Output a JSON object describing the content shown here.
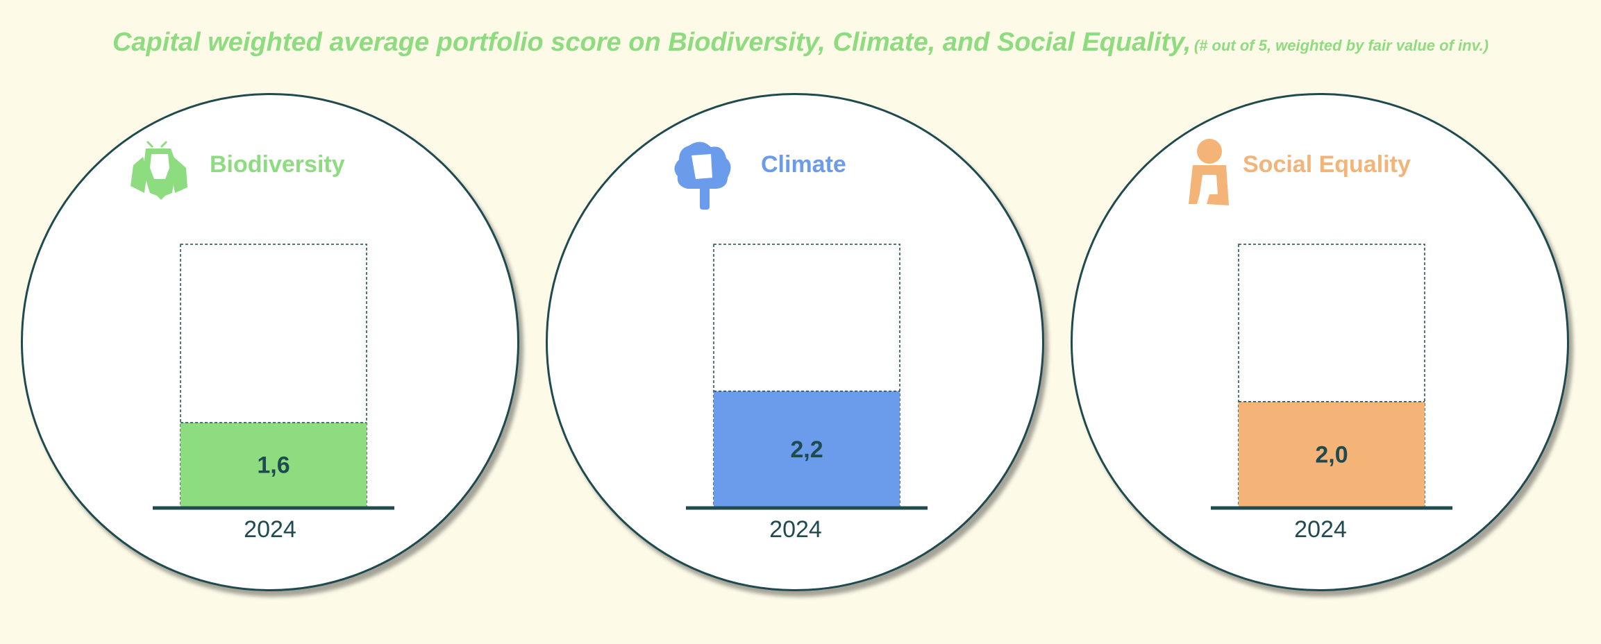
{
  "title": {
    "main": "Capital weighted average portfolio score on Biodiversity, Climate, and Social Equality,",
    "sub": "(# out of 5, weighted by fair value of inv.)"
  },
  "chart_data": {
    "type": "bar",
    "title": "Capital weighted average portfolio score on Biodiversity, Climate, and Social Equality, (# out of 5, weighted by fair value of inv.)",
    "ylim": [
      0,
      5
    ],
    "xlabel": "",
    "ylabel": "",
    "categories": [
      "2024"
    ],
    "series": [
      {
        "name": "Biodiversity",
        "values": [
          1.6
        ],
        "value_labels": [
          "1,6"
        ],
        "color": "#8edc80",
        "icon": "bee-icon"
      },
      {
        "name": "Climate",
        "values": [
          2.2
        ],
        "value_labels": [
          "2,2"
        ],
        "color": "#6b9cec",
        "icon": "tree-icon"
      },
      {
        "name": "Social Equality",
        "values": [
          2.0
        ],
        "value_labels": [
          "2,0"
        ],
        "color": "#f4b478",
        "icon": "person-icon"
      }
    ]
  },
  "colors": {
    "background": "#fdfbe8",
    "title": "#8edc80",
    "outline": "#1f4a4f",
    "value_text": "#1f4a4f"
  }
}
